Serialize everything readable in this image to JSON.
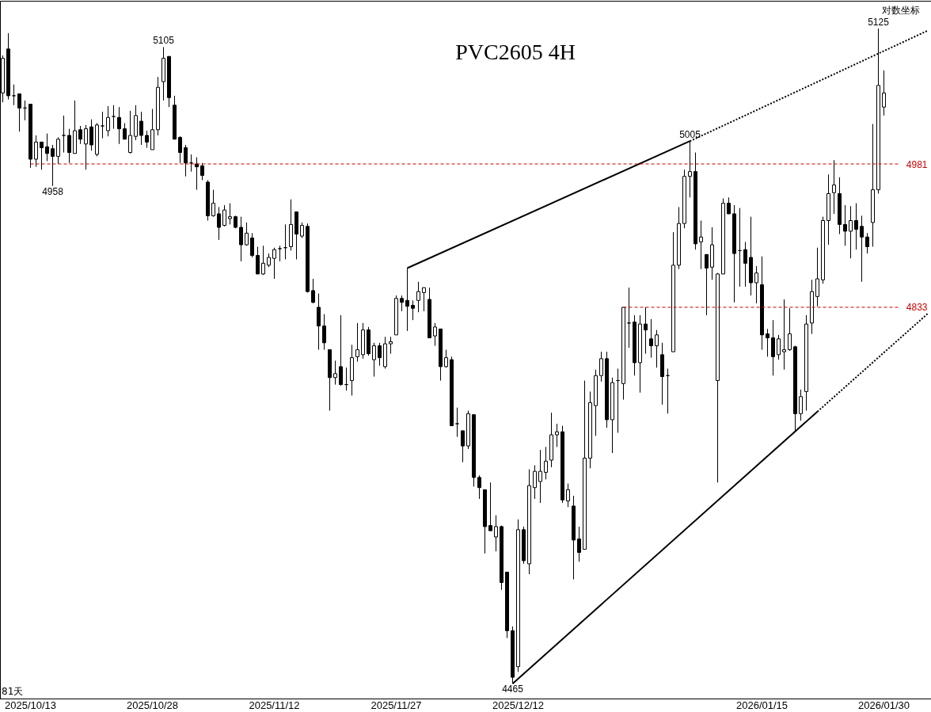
{
  "chart_data": {
    "type": "candlestick",
    "title": "PVC2605 4H",
    "color": "#000000",
    "log": true,
    "ylim": [
      4451,
      5155
    ],
    "yticks": [
      4981,
      4833
    ],
    "categories": [
      null,
      null,
      null,
      null,
      null,
      "2025/10/13",
      null,
      null,
      null,
      null,
      null,
      null,
      null,
      null,
      null,
      null,
      null,
      null,
      null,
      null,
      null,
      null,
      null,
      null,
      null,
      null,
      null,
      "2025/10/28",
      null,
      null,
      null,
      null,
      null,
      null,
      null,
      null,
      null,
      null,
      null,
      null,
      null,
      null,
      null,
      null,
      null,
      null,
      null,
      null,
      null,
      "2025/11/12",
      null,
      null,
      null,
      null,
      null,
      null,
      null,
      null,
      null,
      null,
      null,
      null,
      null,
      null,
      null,
      null,
      null,
      null,
      null,
      null,
      null,
      "2025/11/27",
      null,
      null,
      null,
      null,
      null,
      null,
      null,
      null,
      null,
      null,
      null,
      null,
      null,
      null,
      null,
      null,
      null,
      null,
      null,
      null,
      null,
      "2025/12/12",
      null,
      null,
      null,
      null,
      null,
      null,
      null,
      null,
      null,
      null,
      null,
      null,
      null,
      null,
      null,
      null,
      null,
      null,
      null,
      null,
      null,
      null,
      null,
      null,
      null,
      null,
      null,
      null,
      null,
      null,
      null,
      null,
      null,
      null,
      null,
      null,
      null,
      null,
      null,
      null,
      null,
      null,
      null,
      "2026/01/15",
      null,
      null,
      null,
      null,
      null,
      null,
      null,
      null,
      null,
      null,
      null,
      null,
      null,
      null,
      null,
      null,
      null,
      null,
      null,
      null,
      null,
      "2026/01/30",
      null,
      null,
      null,
      null,
      null,
      null,
      null,
      null
    ],
    "ohlc": [
      [
        5056,
        5096,
        5046,
        5093
      ],
      [
        5103,
        5120,
        5049,
        5053
      ],
      [
        5053,
        5065,
        5043,
        5053
      ],
      [
        5055,
        5055,
        5015,
        5040
      ],
      [
        5040,
        5048,
        5027,
        5040
      ],
      [
        5044,
        5044,
        4977,
        4986
      ],
      [
        4986,
        5011,
        4978,
        5004
      ],
      [
        5004,
        5004,
        4975,
        4998
      ],
      [
        4999,
        5013,
        4984,
        4992
      ],
      [
        4997,
        5001,
        4958,
        4989
      ],
      [
        4989,
        5009,
        4981,
        5007
      ],
      [
        5011,
        5032,
        4993,
        5011
      ],
      [
        5011,
        5018,
        4982,
        4993
      ],
      [
        4992,
        5048,
        4992,
        5016
      ],
      [
        5017,
        5021,
        5002,
        5007
      ],
      [
        5002,
        5022,
        4975,
        5018
      ],
      [
        5020,
        5028,
        4995,
        5001
      ],
      [
        4991,
        5024,
        4989,
        5022
      ],
      [
        5021,
        5036,
        5008,
        5021
      ],
      [
        5016,
        5042,
        5010,
        5030
      ],
      [
        5031,
        5043,
        5018,
        5031
      ],
      [
        5030,
        5041,
        5002,
        5018
      ],
      [
        5018,
        5024,
        5007,
        5007
      ],
      [
        4993,
        5037,
        4992,
        5011
      ],
      [
        5010,
        5043,
        5006,
        5032
      ],
      [
        5026,
        5036,
        5001,
        5011
      ],
      [
        5011,
        5016,
        4998,
        5004
      ],
      [
        4996,
        5039,
        4996,
        5017
      ],
      [
        5017,
        5073,
        5011,
        5062
      ],
      [
        5068,
        5105,
        5048,
        5093
      ],
      [
        5095,
        5095,
        5041,
        5051
      ],
      [
        5043,
        5053,
        5007,
        5007
      ],
      [
        5009,
        5010,
        4982,
        4993
      ],
      [
        4998,
        5001,
        4968,
        4982
      ],
      [
        4982,
        4991,
        4973,
        4982
      ],
      [
        4981,
        4988,
        4954,
        4978
      ],
      [
        4979,
        4982,
        4964,
        4969
      ],
      [
        4962,
        4964,
        4922,
        4927
      ],
      [
        4927,
        4954,
        4926,
        4940
      ],
      [
        4929,
        4936,
        4902,
        4915
      ],
      [
        4917,
        4938,
        4916,
        4933
      ],
      [
        4924,
        4940,
        4918,
        4926
      ],
      [
        4926,
        4927,
        4914,
        4915
      ],
      [
        4915,
        4926,
        4880,
        4897
      ],
      [
        4897,
        4920,
        4896,
        4909
      ],
      [
        4904,
        4909,
        4884,
        4886
      ],
      [
        4886,
        4895,
        4867,
        4867
      ],
      [
        4867,
        4896,
        4866,
        4878
      ],
      [
        4876,
        4888,
        4874,
        4884
      ],
      [
        4883,
        4894,
        4862,
        4892
      ],
      [
        4893,
        4896,
        4880,
        4893
      ],
      [
        4894,
        4918,
        4882,
        4894
      ],
      [
        4895,
        4944,
        4891,
        4918
      ],
      [
        4931,
        4931,
        4882,
        4908
      ],
      [
        4906,
        4920,
        4904,
        4917
      ],
      [
        4916,
        4919,
        4848,
        4849
      ],
      [
        4850,
        4862,
        4837,
        4838
      ],
      [
        4833,
        4847,
        4790,
        4814
      ],
      [
        4814,
        4826,
        4790,
        4797
      ],
      [
        4790,
        4790,
        4729,
        4762
      ],
      [
        4762,
        4779,
        4755,
        4766
      ],
      [
        4773,
        4825,
        4754,
        4755
      ],
      [
        4755,
        4772,
        4749,
        4755
      ],
      [
        4759,
        4795,
        4744,
        4782
      ],
      [
        4783,
        4817,
        4778,
        4790
      ],
      [
        4785,
        4817,
        4781,
        4810
      ],
      [
        4810,
        4813,
        4784,
        4786
      ],
      [
        4780,
        4797,
        4763,
        4794
      ],
      [
        4794,
        4797,
        4774,
        4782
      ],
      [
        4773,
        4803,
        4771,
        4796
      ],
      [
        4796,
        4803,
        4786,
        4798
      ],
      [
        4805,
        4845,
        4805,
        4842
      ],
      [
        4842,
        4845,
        4829,
        4838
      ],
      [
        4840,
        4873,
        4809,
        4834
      ],
      [
        4835,
        4840,
        4820,
        4832
      ],
      [
        4840,
        4859,
        4828,
        4849
      ],
      [
        4848,
        4853,
        4829,
        4853
      ],
      [
        4841,
        4853,
        4802,
        4802
      ],
      [
        4804,
        4817,
        4794,
        4813
      ],
      [
        4811,
        4811,
        4759,
        4773
      ],
      [
        4773,
        4790,
        4772,
        4782
      ],
      [
        4780,
        4783,
        4714,
        4714
      ],
      [
        4716,
        4732,
        4703,
        4716
      ],
      [
        4709,
        4709,
        4678,
        4694
      ],
      [
        4694,
        4729,
        4691,
        4726
      ],
      [
        4725,
        4725,
        4654,
        4663
      ],
      [
        4663,
        4665,
        4642,
        4653
      ],
      [
        4651,
        4651,
        4589,
        4615
      ],
      [
        4616,
        4658,
        4611,
        4611
      ],
      [
        4605,
        4626,
        4591,
        4615
      ],
      [
        4615,
        4616,
        4554,
        4561
      ],
      [
        4571,
        4571,
        4508,
        4515
      ],
      [
        4515,
        4519,
        4465,
        4471
      ],
      [
        4481,
        4622,
        4476,
        4612
      ],
      [
        4612,
        4615,
        4579,
        4582
      ],
      [
        4579,
        4671,
        4569,
        4655
      ],
      [
        4653,
        4675,
        4642,
        4669
      ],
      [
        4659,
        4690,
        4638,
        4669
      ],
      [
        4668,
        4693,
        4661,
        4679
      ],
      [
        4680,
        4727,
        4673,
        4705
      ],
      [
        4705,
        4716,
        4693,
        4708
      ],
      [
        4708,
        4714,
        4638,
        4641
      ],
      [
        4640,
        4657,
        4634,
        4651
      ],
      [
        4635,
        4645,
        4564,
        4602
      ],
      [
        4603,
        4615,
        4581,
        4590
      ],
      [
        4593,
        4759,
        4593,
        4682
      ],
      [
        4682,
        4748,
        4672,
        4737
      ],
      [
        4734,
        4770,
        4704,
        4764
      ],
      [
        4764,
        4788,
        4758,
        4781
      ],
      [
        4781,
        4788,
        4712,
        4720
      ],
      [
        4720,
        4762,
        4687,
        4757
      ],
      [
        4759,
        4771,
        4707,
        4759
      ],
      [
        4756,
        4833,
        4740,
        4833
      ],
      [
        4817,
        4853,
        4792,
        4817
      ],
      [
        4818,
        4825,
        4764,
        4777
      ],
      [
        4777,
        4825,
        4747,
        4816
      ],
      [
        4816,
        4833,
        4786,
        4810
      ],
      [
        4801,
        4821,
        4782,
        4794
      ],
      [
        4794,
        4810,
        4772,
        4805
      ],
      [
        4785,
        4797,
        4735,
        4763
      ],
      [
        4764,
        4771,
        4726,
        4764
      ],
      [
        4788,
        4910,
        4788,
        4876
      ],
      [
        4876,
        4936,
        4872,
        4919
      ],
      [
        4919,
        4975,
        4914,
        4968
      ],
      [
        4968,
        5005,
        4946,
        4973
      ],
      [
        4973,
        4993,
        4892,
        4898
      ],
      [
        4900,
        4922,
        4872,
        4905
      ],
      [
        4887,
        4887,
        4825,
        4873
      ],
      [
        4874,
        4915,
        4861,
        4897
      ],
      [
        4759,
        4868,
        4658,
        4867
      ],
      [
        4867,
        4945,
        4867,
        4940
      ],
      [
        4940,
        4946,
        4929,
        4929
      ],
      [
        4929,
        4938,
        4838,
        4888
      ],
      [
        4891,
        4935,
        4854,
        4891
      ],
      [
        4892,
        4900,
        4854,
        4878
      ],
      [
        4884,
        4926,
        4845,
        4858
      ],
      [
        4858,
        4875,
        4837,
        4868
      ],
      [
        4856,
        4885,
        4790,
        4805
      ],
      [
        4806,
        4811,
        4783,
        4802
      ],
      [
        4802,
        4820,
        4764,
        4783
      ],
      [
        4785,
        4805,
        4780,
        4801
      ],
      [
        4788,
        4841,
        4770,
        4790
      ],
      [
        4790,
        4832,
        4789,
        4806
      ],
      [
        4793,
        4794,
        4708,
        4726
      ],
      [
        4726,
        4750,
        4719,
        4743
      ],
      [
        4748,
        4825,
        4729,
        4816
      ],
      [
        4817,
        4861,
        4806,
        4849
      ],
      [
        4844,
        4894,
        4834,
        4862
      ],
      [
        4861,
        4926,
        4857,
        4922
      ],
      [
        4922,
        4970,
        4897,
        4950
      ],
      [
        4951,
        4985,
        4929,
        4959
      ],
      [
        4950,
        4967,
        4908,
        4918
      ],
      [
        4918,
        4938,
        4896,
        4911
      ],
      [
        4911,
        4937,
        4883,
        4922
      ],
      [
        4922,
        4940,
        4892,
        4913
      ],
      [
        4916,
        4927,
        4859,
        4905
      ],
      [
        4905,
        4909,
        4888,
        4895
      ],
      [
        4920,
        5023,
        4895,
        4954
      ],
      [
        4954,
        5125,
        4950,
        5064
      ],
      [
        5041,
        5080,
        5032,
        5056
      ],
      null,
      null,
      null,
      null,
      null,
      null,
      null,
      null
    ],
    "series": [
      {
        "type": "line",
        "line_style": "solid",
        "color": "#000000",
        "values": [
          null,
          null,
          null,
          null,
          null,
          null,
          null,
          null,
          null,
          null,
          null,
          null,
          null,
          null,
          null,
          null,
          null,
          null,
          null,
          null,
          null,
          null,
          null,
          null,
          null,
          null,
          null,
          null,
          null,
          null,
          null,
          null,
          null,
          null,
          null,
          null,
          null,
          null,
          null,
          null,
          null,
          null,
          null,
          null,
          null,
          null,
          null,
          null,
          null,
          null,
          null,
          null,
          null,
          null,
          null,
          null,
          null,
          null,
          null,
          null,
          null,
          null,
          null,
          null,
          null,
          null,
          null,
          null,
          null,
          null,
          null,
          null,
          null,
          4873,
          null,
          null,
          null,
          null,
          null,
          null,
          null,
          null,
          null,
          null,
          null,
          null,
          null,
          null,
          null,
          null,
          null,
          null,
          null,
          null,
          null,
          null,
          null,
          null,
          null,
          null,
          null,
          null,
          null,
          null,
          null,
          null,
          null,
          null,
          null,
          null,
          null,
          null,
          null,
          null,
          null,
          null,
          null,
          null,
          null,
          null,
          null,
          null,
          null,
          null,
          5005,
          null,
          null,
          null,
          null,
          null,
          null,
          null,
          null,
          null,
          null,
          null,
          null,
          null,
          null,
          null,
          null,
          null,
          null,
          null,
          null,
          null,
          null,
          null,
          null,
          null,
          null,
          null,
          null,
          null,
          null,
          null,
          null,
          null,
          null,
          null,
          null,
          null,
          null,
          null,
          null,
          null,
          null,
          null
        ]
      },
      {
        "type": "line",
        "line_style": "dotted",
        "color": "#000000",
        "values": [
          null,
          null,
          null,
          null,
          null,
          null,
          null,
          null,
          null,
          null,
          null,
          null,
          null,
          null,
          null,
          null,
          null,
          null,
          null,
          null,
          null,
          null,
          null,
          null,
          null,
          null,
          null,
          null,
          null,
          null,
          null,
          null,
          null,
          null,
          null,
          null,
          null,
          null,
          null,
          null,
          null,
          null,
          null,
          null,
          null,
          null,
          null,
          null,
          null,
          null,
          null,
          null,
          null,
          null,
          null,
          null,
          null,
          null,
          null,
          null,
          null,
          null,
          null,
          null,
          null,
          null,
          null,
          null,
          null,
          null,
          null,
          null,
          null,
          null,
          null,
          null,
          null,
          null,
          null,
          null,
          null,
          null,
          null,
          null,
          null,
          null,
          null,
          null,
          null,
          null,
          null,
          null,
          null,
          null,
          null,
          null,
          null,
          null,
          null,
          null,
          null,
          null,
          null,
          null,
          null,
          null,
          null,
          null,
          null,
          null,
          null,
          null,
          null,
          null,
          null,
          null,
          null,
          null,
          null,
          null,
          null,
          null,
          null,
          null,
          5005,
          null,
          null,
          null,
          null,
          null,
          null,
          null,
          null,
          null,
          null,
          null,
          null,
          null,
          null,
          null,
          null,
          null,
          null,
          null,
          null,
          null,
          null,
          null,
          null,
          null,
          null,
          null,
          null,
          null,
          null,
          null,
          null,
          null,
          null,
          null,
          null,
          null,
          null,
          null,
          null,
          null,
          null,
          5123
        ]
      },
      {
        "type": "line",
        "line_style": "solid",
        "color": "#000000",
        "values": [
          null,
          null,
          null,
          null,
          null,
          null,
          null,
          null,
          null,
          null,
          null,
          null,
          null,
          null,
          null,
          null,
          null,
          null,
          null,
          null,
          null,
          null,
          null,
          null,
          null,
          null,
          null,
          null,
          null,
          null,
          null,
          null,
          null,
          null,
          null,
          null,
          null,
          null,
          null,
          null,
          null,
          null,
          null,
          null,
          null,
          null,
          null,
          null,
          null,
          null,
          null,
          null,
          null,
          null,
          null,
          null,
          null,
          null,
          null,
          null,
          null,
          null,
          null,
          null,
          null,
          null,
          null,
          null,
          null,
          null,
          null,
          null,
          null,
          null,
          null,
          null,
          null,
          null,
          null,
          null,
          null,
          null,
          null,
          null,
          null,
          null,
          null,
          null,
          null,
          null,
          null,
          null,
          4465,
          null,
          null,
          null,
          null,
          null,
          null,
          null,
          null,
          null,
          null,
          null,
          null,
          null,
          null,
          null,
          null,
          null,
          null,
          null,
          null,
          null,
          null,
          null,
          null,
          null,
          null,
          null,
          null,
          null,
          null,
          null,
          null,
          null,
          null,
          null,
          null,
          null,
          null,
          null,
          null,
          null,
          null,
          null,
          null,
          null,
          null,
          null,
          null,
          null,
          null,
          null,
          null,
          null,
          null,
          4728,
          null,
          null,
          null,
          null,
          null,
          null,
          null,
          null,
          null,
          null,
          null,
          null,
          null,
          null,
          null,
          null,
          null,
          null,
          null,
          null
        ]
      },
      {
        "type": "line",
        "line_style": "dotted",
        "color": "#000000",
        "values": [
          null,
          null,
          null,
          null,
          null,
          null,
          null,
          null,
          null,
          null,
          null,
          null,
          null,
          null,
          null,
          null,
          null,
          null,
          null,
          null,
          null,
          null,
          null,
          null,
          null,
          null,
          null,
          null,
          null,
          null,
          null,
          null,
          null,
          null,
          null,
          null,
          null,
          null,
          null,
          null,
          null,
          null,
          null,
          null,
          null,
          null,
          null,
          null,
          null,
          null,
          null,
          null,
          null,
          null,
          null,
          null,
          null,
          null,
          null,
          null,
          null,
          null,
          null,
          null,
          null,
          null,
          null,
          null,
          null,
          null,
          null,
          null,
          null,
          null,
          null,
          null,
          null,
          null,
          null,
          null,
          null,
          null,
          null,
          null,
          null,
          null,
          null,
          null,
          null,
          null,
          null,
          null,
          null,
          null,
          null,
          null,
          null,
          null,
          null,
          null,
          null,
          null,
          null,
          null,
          null,
          null,
          null,
          null,
          null,
          null,
          null,
          null,
          null,
          null,
          null,
          null,
          null,
          null,
          null,
          null,
          null,
          null,
          null,
          null,
          null,
          null,
          null,
          null,
          null,
          null,
          null,
          null,
          null,
          null,
          null,
          null,
          null,
          null,
          null,
          null,
          null,
          null,
          null,
          null,
          null,
          null,
          null,
          4728,
          null,
          null,
          null,
          null,
          null,
          null,
          null,
          null,
          null,
          null,
          null,
          null,
          null,
          null,
          null,
          null,
          null,
          null,
          null,
          4827
        ]
      },
      {
        "type": "line",
        "line_style": "dashed",
        "color": "#cc0000",
        "values": [
          null,
          null,
          null,
          null,
          null,
          4981,
          null,
          null,
          null,
          null,
          null,
          null,
          null,
          null,
          null,
          null,
          null,
          null,
          null,
          null,
          null,
          null,
          null,
          null,
          null,
          null,
          null,
          null,
          null,
          null,
          null,
          null,
          null,
          null,
          null,
          null,
          null,
          null,
          null,
          null,
          null,
          null,
          null,
          null,
          null,
          null,
          null,
          null,
          null,
          null,
          null,
          null,
          null,
          null,
          null,
          null,
          null,
          null,
          null,
          null,
          null,
          null,
          null,
          null,
          null,
          null,
          null,
          null,
          null,
          null,
          null,
          null,
          null,
          null,
          null,
          null,
          null,
          null,
          null,
          null,
          null,
          null,
          null,
          null,
          null,
          null,
          null,
          null,
          null,
          null,
          null,
          null,
          null,
          null,
          null,
          null,
          null,
          null,
          null,
          null,
          null,
          null,
          null,
          null,
          null,
          null,
          null,
          null,
          null,
          null,
          null,
          null,
          null,
          null,
          null,
          null,
          null,
          null,
          null,
          null,
          null,
          null,
          null,
          null,
          null,
          null,
          null,
          null,
          null,
          null,
          null,
          null,
          null,
          null,
          null,
          null,
          null,
          null,
          null,
          null,
          null,
          null,
          null,
          null,
          null,
          null,
          null,
          null,
          null,
          null,
          null,
          null,
          null,
          null,
          null,
          null,
          null,
          null,
          null,
          null,
          null,
          null,
          4981,
          null,
          null,
          null,
          null,
          null
        ]
      },
      {
        "type": "line",
        "line_style": "dashed",
        "color": "#cc0000",
        "values": [
          null,
          null,
          null,
          null,
          null,
          null,
          null,
          null,
          null,
          null,
          null,
          null,
          null,
          null,
          null,
          null,
          null,
          null,
          null,
          null,
          null,
          null,
          null,
          null,
          null,
          null,
          null,
          null,
          null,
          null,
          null,
          null,
          null,
          null,
          null,
          null,
          null,
          null,
          null,
          null,
          null,
          null,
          null,
          null,
          null,
          null,
          null,
          null,
          null,
          null,
          null,
          null,
          null,
          null,
          null,
          null,
          null,
          null,
          null,
          null,
          null,
          null,
          null,
          null,
          null,
          null,
          null,
          null,
          null,
          null,
          null,
          null,
          null,
          null,
          null,
          null,
          null,
          null,
          null,
          null,
          null,
          null,
          null,
          null,
          null,
          null,
          null,
          null,
          null,
          null,
          null,
          null,
          null,
          null,
          null,
          null,
          null,
          null,
          null,
          null,
          null,
          null,
          null,
          null,
          null,
          null,
          null,
          null,
          null,
          null,
          null,
          null,
          4833,
          null,
          null,
          null,
          null,
          null,
          null,
          null,
          null,
          null,
          null,
          null,
          null,
          null,
          null,
          null,
          null,
          null,
          null,
          null,
          null,
          null,
          null,
          null,
          null,
          null,
          null,
          null,
          null,
          null,
          null,
          null,
          null,
          null,
          null,
          null,
          null,
          null,
          null,
          null,
          null,
          null,
          null,
          null,
          null,
          null,
          null,
          null,
          null,
          null,
          4833,
          null,
          null,
          null,
          null,
          null
        ]
      }
    ],
    "annotations": [
      {
        "text": "5105",
        "y": 5105
      },
      {
        "text": "4958",
        "y": 4958
      },
      {
        "text": "5005",
        "y": 5005
      },
      {
        "text": "5125",
        "y": 5125
      },
      {
        "text": "4465",
        "y": 4465
      },
      "对数坐标",
      "81天"
    ]
  }
}
